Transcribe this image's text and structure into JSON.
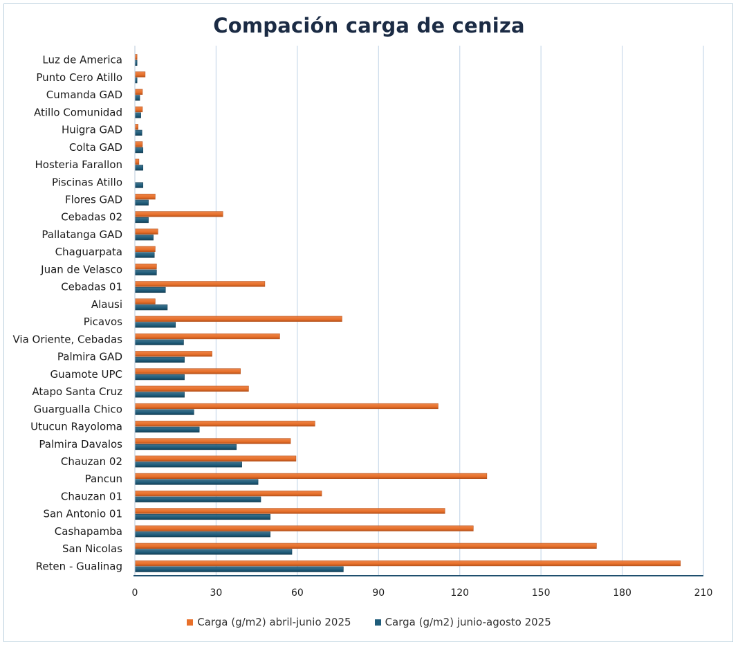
{
  "chart_data": {
    "type": "bar",
    "orientation": "horizontal",
    "title": "Compación carga de ceniza",
    "xlabel": "",
    "ylabel": "",
    "xlim": [
      0,
      210
    ],
    "xticks": [
      0,
      30,
      60,
      90,
      120,
      150,
      180,
      210
    ],
    "grid": true,
    "legend_position": "bottom",
    "categories": [
      "Luz de America",
      "Punto Cero Atillo",
      "Cumanda GAD",
      "Atillo Comunidad",
      "Huigra GAD",
      "Colta GAD",
      "Hosteria Farallon",
      "Piscinas Atillo",
      "Flores GAD",
      "Cebadas 02",
      "Pallatanga GAD",
      "Chaguarpata",
      "Juan de Velasco",
      "Cebadas 01",
      "Alausi",
      "Picavos",
      "Via Oriente, Cebadas",
      "Palmira GAD",
      "Guamote UPC",
      "Atapo Santa Cruz",
      "Guargualla Chico",
      "Utucun Rayoloma",
      "Palmira Davalos",
      "Chauzan 02",
      "Pancun",
      "Chauzan 01",
      "San Antonio 01",
      "Cashapamba",
      "San Nicolas",
      "Reten - Gualinag"
    ],
    "series": [
      {
        "name": "Carga (g/m2) abril-junio 2025",
        "color": "#e8702a",
        "values": [
          0.8,
          3.8,
          2.8,
          2.8,
          1.2,
          2.8,
          1.5,
          0,
          7.5,
          32.5,
          8.5,
          7.5,
          8,
          48,
          7.5,
          76.5,
          53.5,
          28.5,
          39,
          42,
          112,
          66.5,
          57.5,
          59.5,
          130,
          69,
          114.5,
          125,
          170.5,
          201.5
        ]
      },
      {
        "name": "Carga (g/m2) junio-agosto 2025",
        "color": "#1f5c7a",
        "values": [
          0.8,
          0.8,
          1.8,
          2.2,
          2.6,
          3,
          3,
          3,
          5,
          5,
          6.8,
          7.2,
          8,
          11.3,
          12,
          15,
          18,
          18.3,
          18.3,
          18.3,
          21.8,
          23.8,
          37.5,
          39.5,
          45.5,
          46.5,
          50,
          50,
          58,
          77
        ]
      }
    ]
  }
}
